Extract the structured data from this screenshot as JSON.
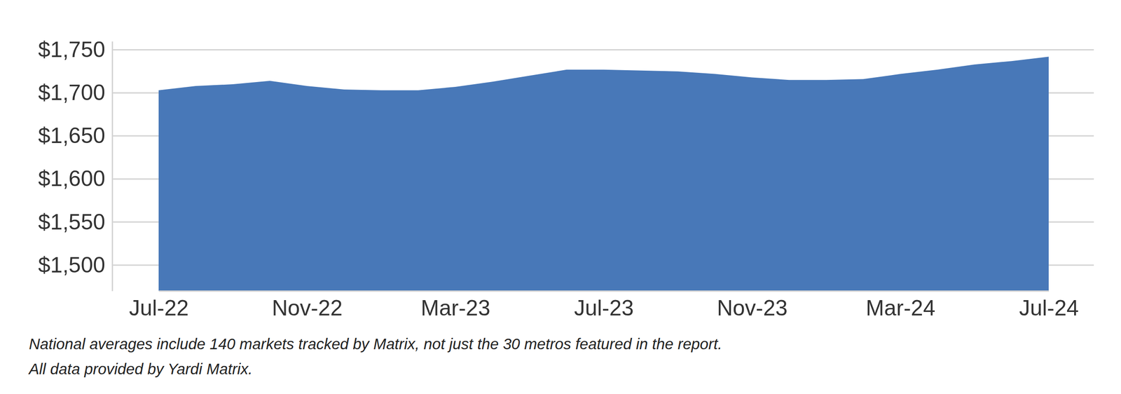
{
  "chart_data": {
    "type": "area",
    "categories": [
      "Jul-22",
      null,
      null,
      null,
      "Nov-22",
      null,
      null,
      null,
      "Mar-23",
      null,
      null,
      null,
      "Jul-23",
      null,
      null,
      null,
      "Nov-23",
      null,
      null,
      null,
      "Mar-24",
      null,
      null,
      null,
      "Jul-24"
    ],
    "values": [
      1703,
      1708,
      1710,
      1714,
      1708,
      1704,
      1703,
      1703,
      1707,
      1713,
      1720,
      1727,
      1727,
      1726,
      1725,
      1722,
      1718,
      1715,
      1715,
      1716,
      1722,
      1727,
      1733,
      1737,
      1742
    ],
    "color": "#4878b8",
    "ylim": [
      1470,
      1760
    ],
    "yticks": [
      {
        "value": 1500,
        "label": "$1,500"
      },
      {
        "value": 1550,
        "label": "$1,550"
      },
      {
        "value": 1600,
        "label": "$1,600"
      },
      {
        "value": 1650,
        "label": "$1,650"
      },
      {
        "value": 1700,
        "label": "$1,700"
      },
      {
        "value": 1750,
        "label": "$1,750"
      }
    ],
    "grid": true,
    "notes": [
      "National averages include 140 markets tracked by Matrix, not just the 30 metros featured in the report.",
      "All data provided by Yardi Matrix."
    ]
  }
}
